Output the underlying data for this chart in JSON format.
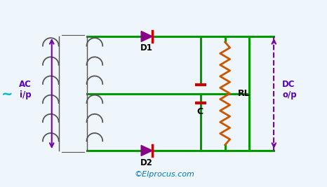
{
  "bg_color": "#eef6fb",
  "wire_color": "#009900",
  "wire_lw": 2.2,
  "diode_color": "#880088",
  "capacitor_color": "#cc0000",
  "resistor_color": "#cc5500",
  "transformer_color": "#555555",
  "ac_arrow_color": "#7700aa",
  "dc_arrow_color": "#7700aa",
  "label_color": "#5500bb",
  "label_ac": "AC\ni/p",
  "label_dc": "DC\no/p",
  "label_d1": "D1",
  "label_d2": "D2",
  "label_c": "C",
  "label_rl": "RL",
  "copyright": "©Elprocus.com",
  "copyright_color": "#0077bb"
}
